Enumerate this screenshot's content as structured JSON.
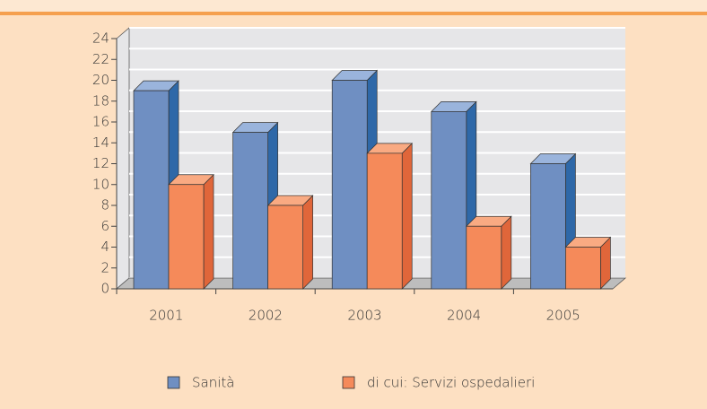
{
  "chart_data": {
    "type": "bar3d",
    "categories": [
      "2001",
      "2002",
      "2003",
      "2004",
      "2005"
    ],
    "series": [
      {
        "name": "Sanità",
        "color": "#6f8fc2",
        "values": [
          19,
          15,
          20,
          17,
          12
        ]
      },
      {
        "name": "di cui: Servizi ospedalieri",
        "color": "#f58a5a",
        "values": [
          10,
          8,
          13,
          6,
          4
        ]
      }
    ],
    "ylim": [
      0,
      24
    ],
    "yticks": [
      0,
      2,
      4,
      6,
      8,
      10,
      12,
      14,
      16,
      18,
      20,
      22,
      24
    ],
    "grid": true,
    "legend": "bottom"
  }
}
